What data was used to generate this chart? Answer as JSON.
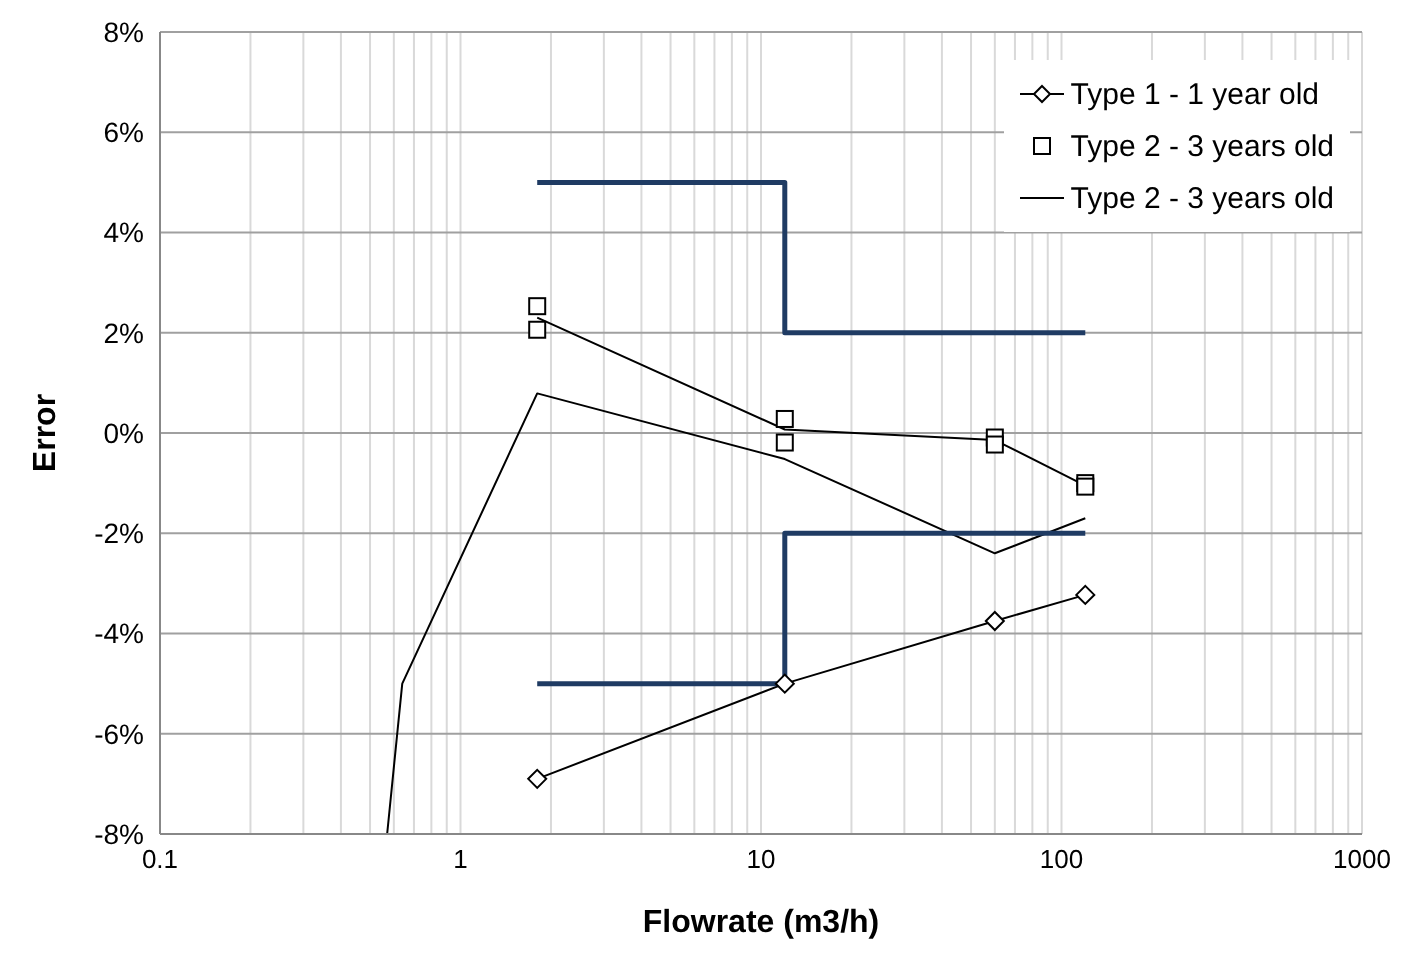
{
  "chart_data": {
    "type": "line",
    "xlabel": "Flowrate (m3/h)",
    "ylabel": "Error",
    "log": "x",
    "grid": true,
    "legend": "top right",
    "xlim": [
      0.1,
      1000
    ],
    "ylim": [
      -8,
      8
    ],
    "xticks": [
      0.1,
      {
        "value": 0.2,
        "label": null
      },
      {
        "value": 0.3,
        "label": null
      },
      {
        "value": 0.4,
        "label": null
      },
      {
        "value": 0.5,
        "label": null
      },
      {
        "value": 0.6,
        "label": null
      },
      {
        "value": 0.7,
        "label": null
      },
      {
        "value": 0.8,
        "label": null
      },
      {
        "value": 0.9,
        "label": null
      },
      1,
      {
        "value": 2,
        "label": null
      },
      {
        "value": 3,
        "label": null
      },
      {
        "value": 4,
        "label": null
      },
      {
        "value": 5,
        "label": null
      },
      {
        "value": 6,
        "label": null
      },
      {
        "value": 7,
        "label": null
      },
      {
        "value": 8,
        "label": null
      },
      {
        "value": 9,
        "label": null
      },
      10,
      {
        "value": 20,
        "label": null
      },
      {
        "value": 30,
        "label": null
      },
      {
        "value": 40,
        "label": null
      },
      {
        "value": 50,
        "label": null
      },
      {
        "value": 60,
        "label": null
      },
      {
        "value": 70,
        "label": null
      },
      {
        "value": 80,
        "label": null
      },
      {
        "value": 90,
        "label": null
      },
      100,
      {
        "value": 200,
        "label": null
      },
      {
        "value": 300,
        "label": null
      },
      {
        "value": 400,
        "label": null
      },
      {
        "value": 500,
        "label": null
      },
      {
        "value": 600,
        "label": null
      },
      {
        "value": 700,
        "label": null
      },
      {
        "value": 800,
        "label": null
      },
      {
        "value": 900,
        "label": null
      },
      1000
    ],
    "yticks": [
      {
        "value": -8,
        "label": "-8%"
      },
      {
        "value": -6,
        "label": "-6%"
      },
      {
        "value": -4,
        "label": "-4%"
      },
      {
        "value": -2,
        "label": "-2%"
      },
      {
        "value": 0,
        "label": "0%"
      },
      {
        "value": 2,
        "label": "2%"
      },
      {
        "value": 4,
        "label": "4%"
      },
      {
        "value": 6,
        "label": "6%"
      },
      {
        "value": 8,
        "label": "8%"
      }
    ],
    "series": [
      {
        "name": "Type 1 - 1 year old",
        "marker": "diamond",
        "color": "#000000",
        "x": [
          1.8,
          12,
          60,
          120
        ],
        "values": [
          -6.9,
          -5.0,
          -3.75,
          -3.23
        ]
      },
      {
        "name": "Type 2 - 3 years old",
        "type": "scatter",
        "marker": "square",
        "color": "#000000",
        "x": [
          1.8,
          1.8,
          12,
          12,
          60,
          60,
          120,
          120
        ],
        "values": [
          2.53,
          2.06,
          0.28,
          -0.19,
          -0.09,
          -0.23,
          -1.0,
          -1.07
        ]
      },
      {
        "marker": "none",
        "color": "#000000",
        "x": [
          1.8,
          12,
          60,
          120
        ],
        "values": [
          2.3,
          0.07,
          -0.14,
          -1.05
        ]
      },
      {
        "name": "Type 2 - 3 years old",
        "marker": "none",
        "color": "#000000",
        "x": [
          0.57,
          0.64,
          1.8,
          12,
          60,
          120
        ],
        "values": [
          -8,
          -5.0,
          0.79,
          -0.52,
          -2.4,
          -1.7
        ]
      },
      {
        "marker": "none",
        "color": "#1f3b63",
        "x": [
          1.8,
          12,
          12,
          120
        ],
        "values": [
          5,
          5,
          2,
          2
        ]
      },
      {
        "marker": "none",
        "color": "#1f3b63",
        "x": [
          1.8,
          12,
          12,
          120
        ],
        "values": [
          -5,
          -5,
          -2,
          -2
        ]
      }
    ]
  }
}
